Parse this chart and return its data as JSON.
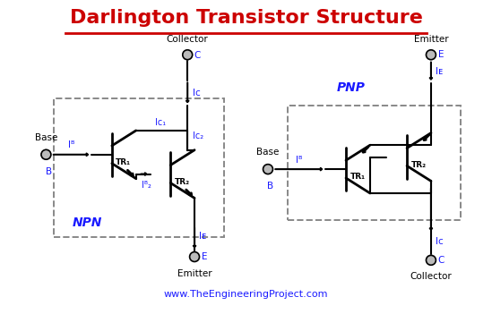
{
  "title": "Darlington Transistor Structure",
  "title_color": "#cc0000",
  "title_fontsize": 16,
  "bg_color": "#ffffff",
  "border_color": "#8b0000",
  "line_color": "#000000",
  "blue_color": "#1a1aff",
  "terminal_color": "#bbbbbb",
  "npn_label": "NPN",
  "pnp_label": "PNP",
  "website": "www.TheEngineeringProject.com"
}
